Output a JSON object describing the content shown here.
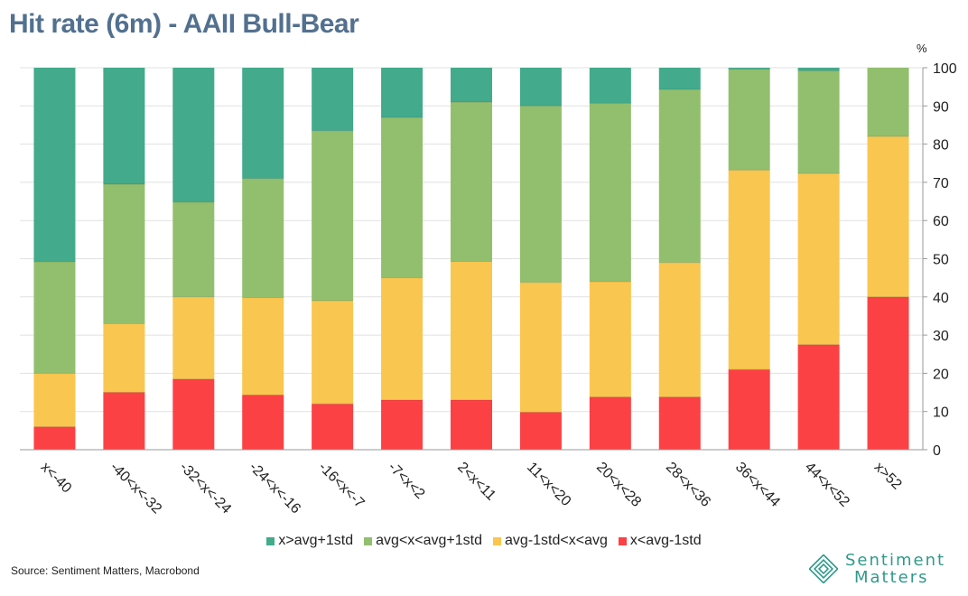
{
  "title": "Hit rate (6m) - AAII Bull-Bear",
  "source": "Source: Sentiment Matters, Macrobond",
  "logo": {
    "line1": "Sentiment",
    "line2": "Matters"
  },
  "chart_data": {
    "type": "bar",
    "stacked": true,
    "title": "Hit rate (6m) - AAII Bull-Bear",
    "ylabel": "%",
    "ylim": [
      0,
      100
    ],
    "yticks": [
      0,
      10,
      20,
      30,
      40,
      50,
      60,
      70,
      80,
      90,
      100
    ],
    "y_axis_side": "right",
    "grid": true,
    "legend_position": "bottom",
    "categories": [
      "x<-40",
      "-40<x<-32",
      "-32<x<-24",
      "-24<x<-16",
      "-16<x<-7",
      "-7<x<2",
      "2<x<11",
      "11<x<20",
      "20<x<28",
      "28<x<36",
      "36<x<44",
      "44<x<52",
      "x>52"
    ],
    "series": [
      {
        "name": "x<avg-1std",
        "color": "#fc4144",
        "values": [
          6,
          15,
          18.5,
          14.3,
          12,
          13,
          13,
          9.8,
          13.8,
          13.8,
          21,
          27.5,
          40
        ]
      },
      {
        "name": "avg-1std<x<avg",
        "color": "#f9c650",
        "values": [
          14,
          18,
          21.5,
          25.5,
          27,
          32,
          36.3,
          34,
          30.2,
          35.2,
          52.2,
          44.8,
          42
        ]
      },
      {
        "name": "avg<x<avg+1std",
        "color": "#92bf6d",
        "values": [
          29.2,
          36.5,
          24.8,
          31.2,
          44.5,
          42,
          41.7,
          46.2,
          46.7,
          45.3,
          26.4,
          26.9,
          18
        ]
      },
      {
        "name": "x>avg+1std",
        "color": "#43aa8b",
        "values": [
          50.8,
          30.5,
          35.2,
          29,
          16.5,
          13,
          9,
          10,
          9.3,
          5.7,
          0.4,
          0.8,
          0
        ]
      }
    ],
    "legend_order": [
      "x>avg+1std",
      "avg<x<avg+1std",
      "avg-1std<x<avg",
      "x<avg-1std"
    ]
  }
}
